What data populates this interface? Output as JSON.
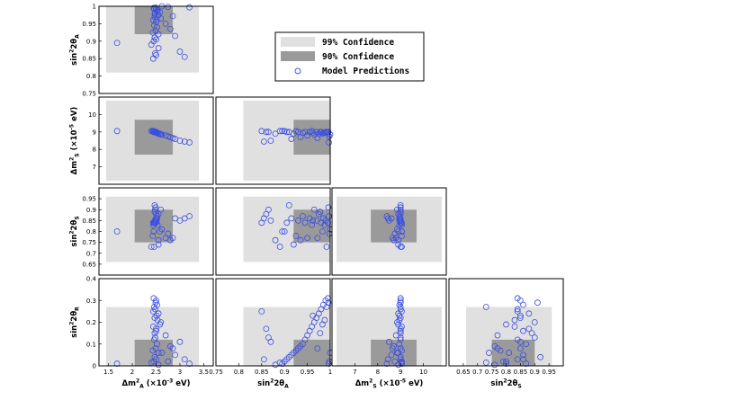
{
  "chart_data": {
    "type": "scatter",
    "layout": "corner-plot",
    "colors": {
      "ci99": "#e0e0e0",
      "ci90": "#9a9a9a",
      "points": "#3b4fe0",
      "frame": "#000000"
    },
    "legend": {
      "placement": "top-center",
      "entries": [
        {
          "key": "ci99",
          "label": "99% Confidence"
        },
        {
          "key": "ci90",
          "label": "90% Confidence"
        },
        {
          "key": "points",
          "label": "Model Predictions"
        }
      ]
    },
    "variables": {
      "dmA": {
        "label": "Δm²_A (×10⁻³ eV)",
        "ylabel_parts": [
          "Δm",
          "2",
          "A",
          " (×10",
          "-3",
          " eV)"
        ],
        "xlabel_parts": [
          "Δm",
          "2",
          "A",
          " (×10",
          "-3",
          " eV)"
        ],
        "range": [
          1.3,
          3.7
        ],
        "ticks": [
          1.5,
          2,
          2.5,
          3,
          3.5
        ],
        "ci99": [
          1.45,
          3.4
        ],
        "ci90": [
          2.05,
          2.85
        ]
      },
      "s2A": {
        "label": "sin²2θ_A",
        "range": [
          0.75,
          1.0
        ],
        "ticks": [
          0.75,
          0.8,
          0.85,
          0.9,
          0.95,
          1
        ],
        "ci99": [
          0.81,
          1.0
        ],
        "ci90": [
          0.92,
          1.0
        ]
      },
      "dmS": {
        "label": "Δm²_S (×10⁻⁵ eV)",
        "range": [
          6.0,
          11.0
        ],
        "ticks": [
          7,
          8,
          9,
          10
        ],
        "ci99": [
          6.2,
          10.8
        ],
        "ci90": [
          7.7,
          9.7
        ]
      },
      "s2S": {
        "label": "sin²2θ_S",
        "range": [
          0.6,
          1.0
        ],
        "ticks": [
          0.65,
          0.7,
          0.75,
          0.8,
          0.85,
          0.9,
          0.95
        ],
        "ci99": [
          0.66,
          0.96
        ],
        "ci90": [
          0.75,
          0.9
        ]
      },
      "s2R": {
        "label": "sin²2θ_R",
        "range": [
          0.0,
          0.4
        ],
        "ticks": [
          0,
          0.1,
          0.2,
          0.3,
          0.4
        ],
        "ci99": [
          0.0,
          0.27
        ],
        "ci90": [
          0.0,
          0.12
        ]
      }
    },
    "tick_labels": {
      "dmA": [
        "1.5",
        "2",
        "2.5",
        "3",
        "3.5"
      ],
      "s2A": [
        "0.75",
        "0.8",
        "0.85",
        "0.9",
        "0.95",
        "1"
      ],
      "dmS": [
        "7",
        "8",
        "9",
        "10"
      ],
      "s2S": [
        "0.65",
        "0.7",
        "0.75",
        "0.8",
        "0.85",
        "0.9",
        "0.95"
      ],
      "s2R": [
        "0",
        "0.1",
        "0.2",
        "0.3",
        "0.4"
      ]
    },
    "axis_labels": {
      "dmA": {
        "main": "Δm",
        "sup": "2",
        "sub": "A",
        "tail": " (×10",
        "tailsup": "-3",
        "end": " eV)"
      },
      "s2A": {
        "main": "sin",
        "sup": "2",
        "mid": "2θ",
        "sub": "A"
      },
      "dmS": {
        "main": "Δm",
        "sup": "2",
        "sub": "S",
        "tail": " (×10",
        "tailsup": "-5",
        "end": " eV)"
      },
      "s2S": {
        "main": "sin",
        "sup": "2",
        "mid": "2θ",
        "sub": "S"
      },
      "s2R": {
        "main": "sin",
        "sup": "2",
        "mid": "2θ",
        "sub": "R"
      }
    },
    "panels": [
      {
        "row": 0,
        "col": 0,
        "x": "dmA",
        "y": "s2A"
      },
      {
        "row": 1,
        "col": 0,
        "x": "dmA",
        "y": "dmS"
      },
      {
        "row": 1,
        "col": 1,
        "x": "s2A",
        "y": "dmS"
      },
      {
        "row": 2,
        "col": 0,
        "x": "dmA",
        "y": "s2S"
      },
      {
        "row": 2,
        "col": 1,
        "x": "s2A",
        "y": "s2S"
      },
      {
        "row": 2,
        "col": 2,
        "x": "dmS",
        "y": "s2S"
      },
      {
        "row": 3,
        "col": 0,
        "x": "dmA",
        "y": "s2R"
      },
      {
        "row": 3,
        "col": 1,
        "x": "s2A",
        "y": "s2R"
      },
      {
        "row": 3,
        "col": 2,
        "x": "dmS",
        "y": "s2R"
      },
      {
        "row": 3,
        "col": 3,
        "x": "s2S",
        "y": "s2R"
      }
    ],
    "model_predictions": {
      "fields": [
        "dmA",
        "s2A",
        "dmS",
        "s2S",
        "s2R"
      ],
      "points": [
        [
          2.45,
          0.995,
          9.0,
          0.84,
          0.31
        ],
        [
          2.5,
          0.99,
          9.0,
          0.85,
          0.3
        ],
        [
          2.52,
          0.985,
          8.95,
          0.86,
          0.28
        ],
        [
          2.48,
          0.98,
          9.0,
          0.84,
          0.26
        ],
        [
          2.55,
          0.975,
          8.9,
          0.88,
          0.24
        ],
        [
          2.47,
          0.97,
          9.0,
          0.85,
          0.22
        ],
        [
          2.6,
          0.965,
          8.85,
          0.9,
          0.2
        ],
        [
          2.44,
          0.96,
          9.05,
          0.83,
          0.18
        ],
        [
          2.5,
          0.955,
          9.0,
          0.86,
          0.16
        ],
        [
          2.7,
          0.95,
          8.8,
          0.77,
          0.14
        ],
        [
          2.46,
          0.945,
          9.0,
          0.84,
          0.12
        ],
        [
          2.52,
          0.94,
          8.95,
          0.87,
          0.1
        ],
        [
          2.8,
          0.935,
          8.7,
          0.76,
          0.09
        ],
        [
          2.49,
          0.93,
          9.0,
          0.85,
          0.08
        ],
        [
          2.43,
          0.925,
          9.05,
          0.78,
          0.07
        ],
        [
          2.55,
          0.92,
          8.9,
          0.74,
          0.06
        ],
        [
          2.9,
          0.915,
          8.6,
          0.86,
          0.05
        ],
        [
          2.47,
          0.91,
          9.0,
          0.92,
          0.04
        ],
        [
          2.5,
          0.905,
          9.0,
          0.84,
          0.03
        ],
        [
          2.45,
          0.9,
          9.05,
          0.8,
          0.02
        ],
        [
          1.68,
          0.895,
          9.05,
          0.8,
          0.01
        ],
        [
          2.4,
          0.89,
          9.05,
          0.73,
          0.015
        ],
        [
          2.55,
          0.88,
          8.9,
          0.76,
          0.005
        ],
        [
          3.0,
          0.87,
          8.5,
          0.85,
          0.11
        ],
        [
          2.48,
          0.865,
          9.0,
          0.9,
          0.13
        ],
        [
          2.5,
          0.86,
          9.0,
          0.88,
          0.17
        ],
        [
          3.1,
          0.855,
          8.45,
          0.86,
          0.03
        ],
        [
          2.44,
          0.85,
          9.05,
          0.84,
          0.25
        ],
        [
          2.62,
          1.0,
          8.85,
          0.81,
          0.06
        ],
        [
          2.75,
          0.998,
          8.75,
          0.79,
          0.02
        ],
        [
          3.2,
          0.997,
          8.4,
          0.87,
          0.01
        ],
        [
          2.49,
          0.996,
          9.0,
          0.91,
          0.29
        ],
        [
          2.46,
          0.992,
          9.0,
          0.73,
          0.27
        ],
        [
          2.53,
          0.988,
          8.95,
          0.83,
          0.21
        ],
        [
          2.58,
          0.983,
          8.9,
          0.8,
          0.19
        ],
        [
          2.47,
          0.978,
          9.0,
          0.89,
          0.15
        ],
        [
          2.85,
          0.972,
          8.65,
          0.77,
          0.08
        ],
        [
          2.51,
          0.962,
          8.95,
          0.85,
          0.23
        ]
      ]
    }
  }
}
